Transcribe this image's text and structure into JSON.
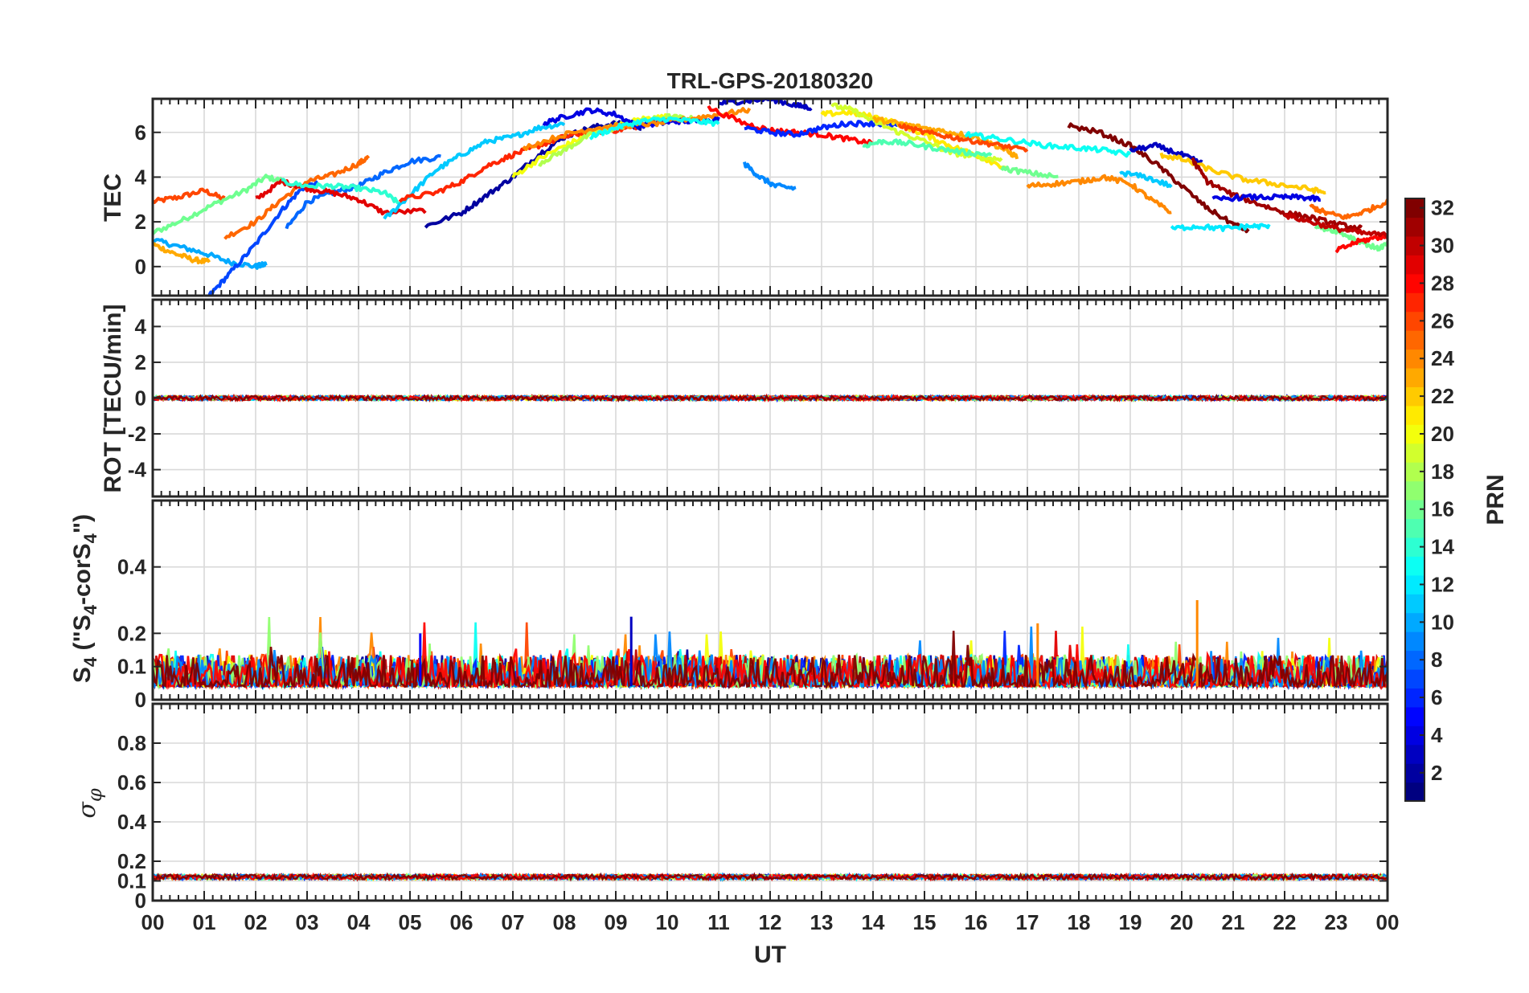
{
  "chart_data": {
    "type": "line",
    "title": "TRL-GPS-20180320",
    "xlabel": "UT",
    "x_ticks": [
      "00",
      "01",
      "02",
      "03",
      "04",
      "05",
      "06",
      "07",
      "08",
      "09",
      "10",
      "11",
      "12",
      "13",
      "14",
      "15",
      "16",
      "17",
      "18",
      "19",
      "20",
      "21",
      "22",
      "23",
      "00"
    ],
    "xlim": [
      0,
      24
    ],
    "colorbar": {
      "label": "PRN",
      "range": [
        1,
        32
      ],
      "ticks": [
        "2",
        "4",
        "6",
        "8",
        "10",
        "12",
        "14",
        "16",
        "18",
        "20",
        "22",
        "24",
        "26",
        "28",
        "30",
        "32"
      ]
    },
    "panels": [
      {
        "ylabel": "TEC",
        "ylim": [
          -1.3,
          7.5
        ],
        "y_ticks": [
          0,
          2,
          4,
          6
        ],
        "y_tick_labels": [
          "0",
          "2",
          "4",
          "6"
        ],
        "series": [
          {
            "prn": 26,
            "x": [
              0.0,
              0.5,
              1.0,
              1.4
            ],
            "values": [
              2.9,
              3.1,
              3.4,
              3.0
            ]
          },
          {
            "prn": 16,
            "x": [
              0.0,
              0.6,
              1.2,
              1.8,
              2.2,
              2.6
            ],
            "values": [
              1.5,
              2.1,
              2.8,
              3.4,
              4.0,
              3.8
            ]
          },
          {
            "prn": 10,
            "x": [
              0.0,
              0.5,
              1.0,
              1.5,
              2.0,
              2.2
            ],
            "values": [
              1.2,
              0.9,
              0.6,
              0.2,
              0.0,
              0.1
            ]
          },
          {
            "prn": 23,
            "x": [
              0.0,
              0.4,
              0.8,
              1.1
            ],
            "values": [
              1.0,
              0.6,
              0.3,
              0.2
            ]
          },
          {
            "prn": 7,
            "x": [
              1.1,
              1.5,
              2.0,
              2.5,
              2.9,
              3.2
            ],
            "values": [
              -1.3,
              -0.3,
              1.0,
              2.5,
              3.5,
              3.7
            ]
          },
          {
            "prn": 8,
            "x": [
              2.6,
              3.0,
              3.5,
              4.0,
              4.5,
              5.0,
              5.6
            ],
            "values": [
              1.7,
              2.9,
              3.3,
              3.6,
              4.2,
              4.7,
              4.9
            ]
          },
          {
            "prn": 25,
            "x": [
              1.4,
              2.0,
              2.5,
              3.0,
              3.5,
              4.0,
              4.2
            ],
            "values": [
              1.3,
              2.0,
              3.0,
              3.8,
              4.1,
              4.6,
              4.9
            ]
          },
          {
            "prn": 29,
            "x": [
              2.0,
              2.5,
              3.0,
              3.5,
              4.0,
              4.5,
              5.3
            ],
            "values": [
              3.0,
              3.8,
              3.5,
              3.3,
              3.0,
              2.4,
              2.5
            ]
          },
          {
            "prn": 14,
            "x": [
              2.5,
              3.0,
              3.5,
              4.0,
              4.5,
              4.8
            ],
            "values": [
              3.8,
              3.6,
              3.6,
              3.5,
              3.3,
              2.8
            ]
          },
          {
            "prn": 11,
            "x": [
              4.5,
              5.0,
              5.5,
              6.0,
              6.5,
              7.0,
              7.5,
              8.0
            ],
            "values": [
              2.1,
              3.2,
              4.3,
              5.0,
              5.6,
              5.8,
              6.2,
              6.4
            ]
          },
          {
            "prn": 2,
            "x": [
              5.3,
              6.0,
              6.5,
              7.0,
              7.5,
              8.0,
              8.5,
              9.0,
              9.5
            ],
            "values": [
              1.8,
              2.4,
              3.2,
              4.0,
              5.0,
              5.8,
              6.2,
              6.4,
              6.2
            ]
          },
          {
            "prn": 27,
            "x": [
              4.8,
              5.5,
              6.0,
              6.5,
              7.0,
              7.5,
              8.0,
              8.5,
              9.0,
              9.5
            ],
            "values": [
              3.0,
              3.3,
              3.8,
              4.5,
              5.0,
              5.4,
              5.8,
              6.0,
              6.1,
              6.3
            ]
          },
          {
            "prn": 20,
            "x": [
              7.0,
              7.5,
              8.0,
              8.5,
              9.0,
              9.5,
              10.0
            ],
            "values": [
              4.0,
              4.8,
              5.4,
              5.9,
              6.3,
              6.6,
              6.7
            ]
          },
          {
            "prn": 18,
            "x": [
              7.5,
              8.0,
              8.5,
              9.0,
              9.5,
              10.0,
              10.5
            ],
            "values": [
              4.6,
              5.2,
              5.9,
              6.2,
              6.5,
              6.7,
              6.6
            ]
          },
          {
            "prn": 4,
            "x": [
              7.6,
              8.0,
              8.5,
              9.0,
              9.4,
              9.8,
              10.2,
              10.6,
              11.0
            ],
            "values": [
              6.4,
              6.7,
              7.0,
              6.8,
              6.3,
              6.4,
              6.5,
              6.5,
              6.6
            ]
          },
          {
            "prn": 24,
            "x": [
              7.2,
              8.0,
              8.6,
              9.2,
              9.8,
              10.4,
              11.0,
              11.6
            ],
            "values": [
              5.3,
              5.9,
              6.2,
              6.3,
              6.4,
              6.6,
              6.8,
              7.0
            ]
          },
          {
            "prn": 13,
            "x": [
              8.5,
              9.0,
              9.5,
              10.0,
              10.5,
              11.0
            ],
            "values": [
              5.8,
              6.2,
              6.5,
              6.6,
              6.5,
              6.4
            ]
          },
          {
            "prn": 9,
            "x": [
              11.5,
              11.8,
              12.1,
              12.5
            ],
            "values": [
              4.6,
              4.0,
              3.6,
              3.5
            ]
          },
          {
            "prn": 3,
            "x": [
              11.0,
              11.5,
              12.0,
              12.5,
              12.8
            ],
            "values": [
              7.3,
              7.4,
              7.5,
              7.2,
              7.1
            ]
          },
          {
            "prn": 28,
            "x": [
              10.8,
              11.5,
              12.0,
              12.5,
              13.0,
              13.5,
              14.0
            ],
            "values": [
              7.1,
              6.4,
              6.1,
              6.0,
              5.9,
              5.7,
              5.5
            ]
          },
          {
            "prn": 6,
            "x": [
              11.5,
              12.0,
              12.5,
              13.0,
              13.5,
              14.0,
              14.5
            ],
            "values": [
              6.2,
              6.0,
              5.9,
              6.2,
              6.4,
              6.4,
              6.3
            ]
          },
          {
            "prn": 21,
            "x": [
              13.0,
              13.5,
              14.0,
              14.5,
              15.0,
              15.5,
              16.0,
              16.6
            ],
            "values": [
              6.8,
              6.9,
              6.7,
              6.4,
              5.9,
              5.4,
              5.0,
              4.4
            ]
          },
          {
            "prn": 19,
            "x": [
              13.2,
              13.6,
              14.0,
              14.5,
              15.0,
              15.5,
              16.0,
              16.5
            ],
            "values": [
              7.2,
              7.0,
              6.5,
              6.0,
              5.6,
              5.1,
              4.9,
              4.8
            ]
          },
          {
            "prn": 15,
            "x": [
              13.8,
              14.2,
              14.7,
              15.2,
              15.8,
              16.3
            ],
            "values": [
              5.4,
              5.6,
              5.5,
              5.3,
              5.1,
              5.0
            ]
          },
          {
            "prn": 23,
            "x": [
              14.0,
              14.5,
              15.0,
              15.5,
              16.0,
              16.5,
              16.8
            ],
            "values": [
              6.6,
              6.4,
              6.2,
              6.0,
              5.8,
              5.3,
              4.9
            ]
          },
          {
            "prn": 26,
            "x": [
              14.5,
              15.0,
              15.5,
              16.0,
              16.5,
              17.0
            ],
            "values": [
              6.3,
              6.0,
              5.8,
              5.6,
              5.4,
              5.2
            ]
          },
          {
            "prn": 13,
            "x": [
              15.8,
              16.2,
              16.8,
              17.4,
              18.0,
              18.5,
              19.0
            ],
            "values": [
              5.9,
              5.8,
              5.6,
              5.4,
              5.3,
              5.2,
              5.0
            ]
          },
          {
            "prn": 16,
            "x": [
              16.5,
              17.0,
              17.6
            ],
            "values": [
              4.4,
              4.2,
              4.0
            ]
          },
          {
            "prn": 24,
            "x": [
              17.0,
              17.5,
              18.0,
              18.5,
              19.0,
              19.4,
              19.8
            ],
            "values": [
              3.6,
              3.7,
              3.8,
              4.0,
              3.7,
              3.0,
              2.4
            ]
          },
          {
            "prn": 32,
            "x": [
              17.8,
              18.4,
              19.0,
              19.5,
              20.0,
              20.5,
              21.0,
              21.3
            ],
            "values": [
              6.3,
              6.0,
              5.4,
              4.6,
              3.6,
              2.6,
              1.9,
              1.6
            ]
          },
          {
            "prn": 3,
            "x": [
              19.0,
              19.5,
              20.0,
              20.4
            ],
            "values": [
              5.2,
              5.4,
              5.0,
              4.6
            ]
          },
          {
            "prn": 11,
            "x": [
              18.8,
              19.3,
              19.8
            ],
            "values": [
              4.2,
              4.0,
              3.6
            ]
          },
          {
            "prn": 12,
            "x": [
              19.8,
              20.3,
              20.8,
              21.3,
              21.7
            ],
            "values": [
              1.7,
              1.8,
              1.7,
              1.8,
              1.8
            ]
          },
          {
            "prn": 22,
            "x": [
              19.6,
              20.0,
              20.6,
              21.2,
              21.8,
              22.4,
              22.8
            ],
            "values": [
              5.0,
              4.8,
              4.3,
              3.9,
              3.7,
              3.5,
              3.3
            ]
          },
          {
            "prn": 31,
            "x": [
              20.2,
              20.5,
              21.0,
              21.5,
              22.0,
              22.5,
              23.0,
              23.5
            ],
            "values": [
              4.8,
              3.8,
              3.2,
              2.8,
              2.4,
              2.2,
              1.9,
              1.7
            ]
          },
          {
            "prn": 4,
            "x": [
              20.6,
              21.2,
              21.8,
              22.3,
              22.7
            ],
            "values": [
              3.0,
              3.1,
              3.1,
              3.1,
              3.0
            ]
          },
          {
            "prn": 25,
            "x": [
              22.5,
              22.8,
              23.2,
              23.6,
              24.0
            ],
            "values": [
              2.7,
              2.4,
              2.2,
              2.5,
              2.9
            ]
          },
          {
            "prn": 16,
            "x": [
              22.6,
              23.0,
              23.4,
              23.8,
              24.0
            ],
            "values": [
              1.8,
              1.6,
              1.2,
              0.8,
              1.0
            ]
          },
          {
            "prn": 28,
            "x": [
              23.0,
              23.4,
              23.8,
              24.0
            ],
            "values": [
              0.7,
              1.1,
              1.3,
              1.4
            ]
          },
          {
            "prn": 30,
            "x": [
              22.0,
              22.5,
              23.0,
              23.5,
              24.0
            ],
            "values": [
              2.3,
              2.0,
              1.7,
              1.5,
              1.4
            ]
          }
        ]
      },
      {
        "ylabel": "ROT [TECU/min]",
        "ylim": [
          -5.5,
          5.5
        ],
        "y_ticks": [
          -4,
          -2,
          0,
          2,
          4
        ],
        "y_tick_labels": [
          "-4",
          "-2",
          "0",
          "2",
          "4"
        ],
        "baseline": 0.0,
        "noise_amplitude": 0.12
      },
      {
        "ylabel": "S4 (\"S4-corS4\")",
        "ylim": [
          0,
          0.6
        ],
        "y_ticks": [
          0,
          0.1,
          0.2,
          0.4
        ],
        "y_tick_labels": [
          "0",
          "0.1",
          "0.2",
          "0.4"
        ],
        "baseline": 0.04,
        "noise_amplitude": 0.06,
        "spikes": [
          {
            "x": 5.2,
            "value": 0.2
          },
          {
            "x": 9.3,
            "value": 0.25
          },
          {
            "x": 17.2,
            "value": 0.23
          },
          {
            "x": 20.3,
            "value": 0.3
          }
        ]
      },
      {
        "ylabel": "σφ",
        "ylim": [
          0,
          1
        ],
        "y_ticks": [
          0,
          0.1,
          0.2,
          0.4,
          0.6,
          0.8
        ],
        "y_tick_labels": [
          "0",
          "0.1",
          "0.2",
          "0.4",
          "0.6",
          "0.8"
        ],
        "baseline": 0.12,
        "noise_amplitude": 0.012
      }
    ]
  }
}
